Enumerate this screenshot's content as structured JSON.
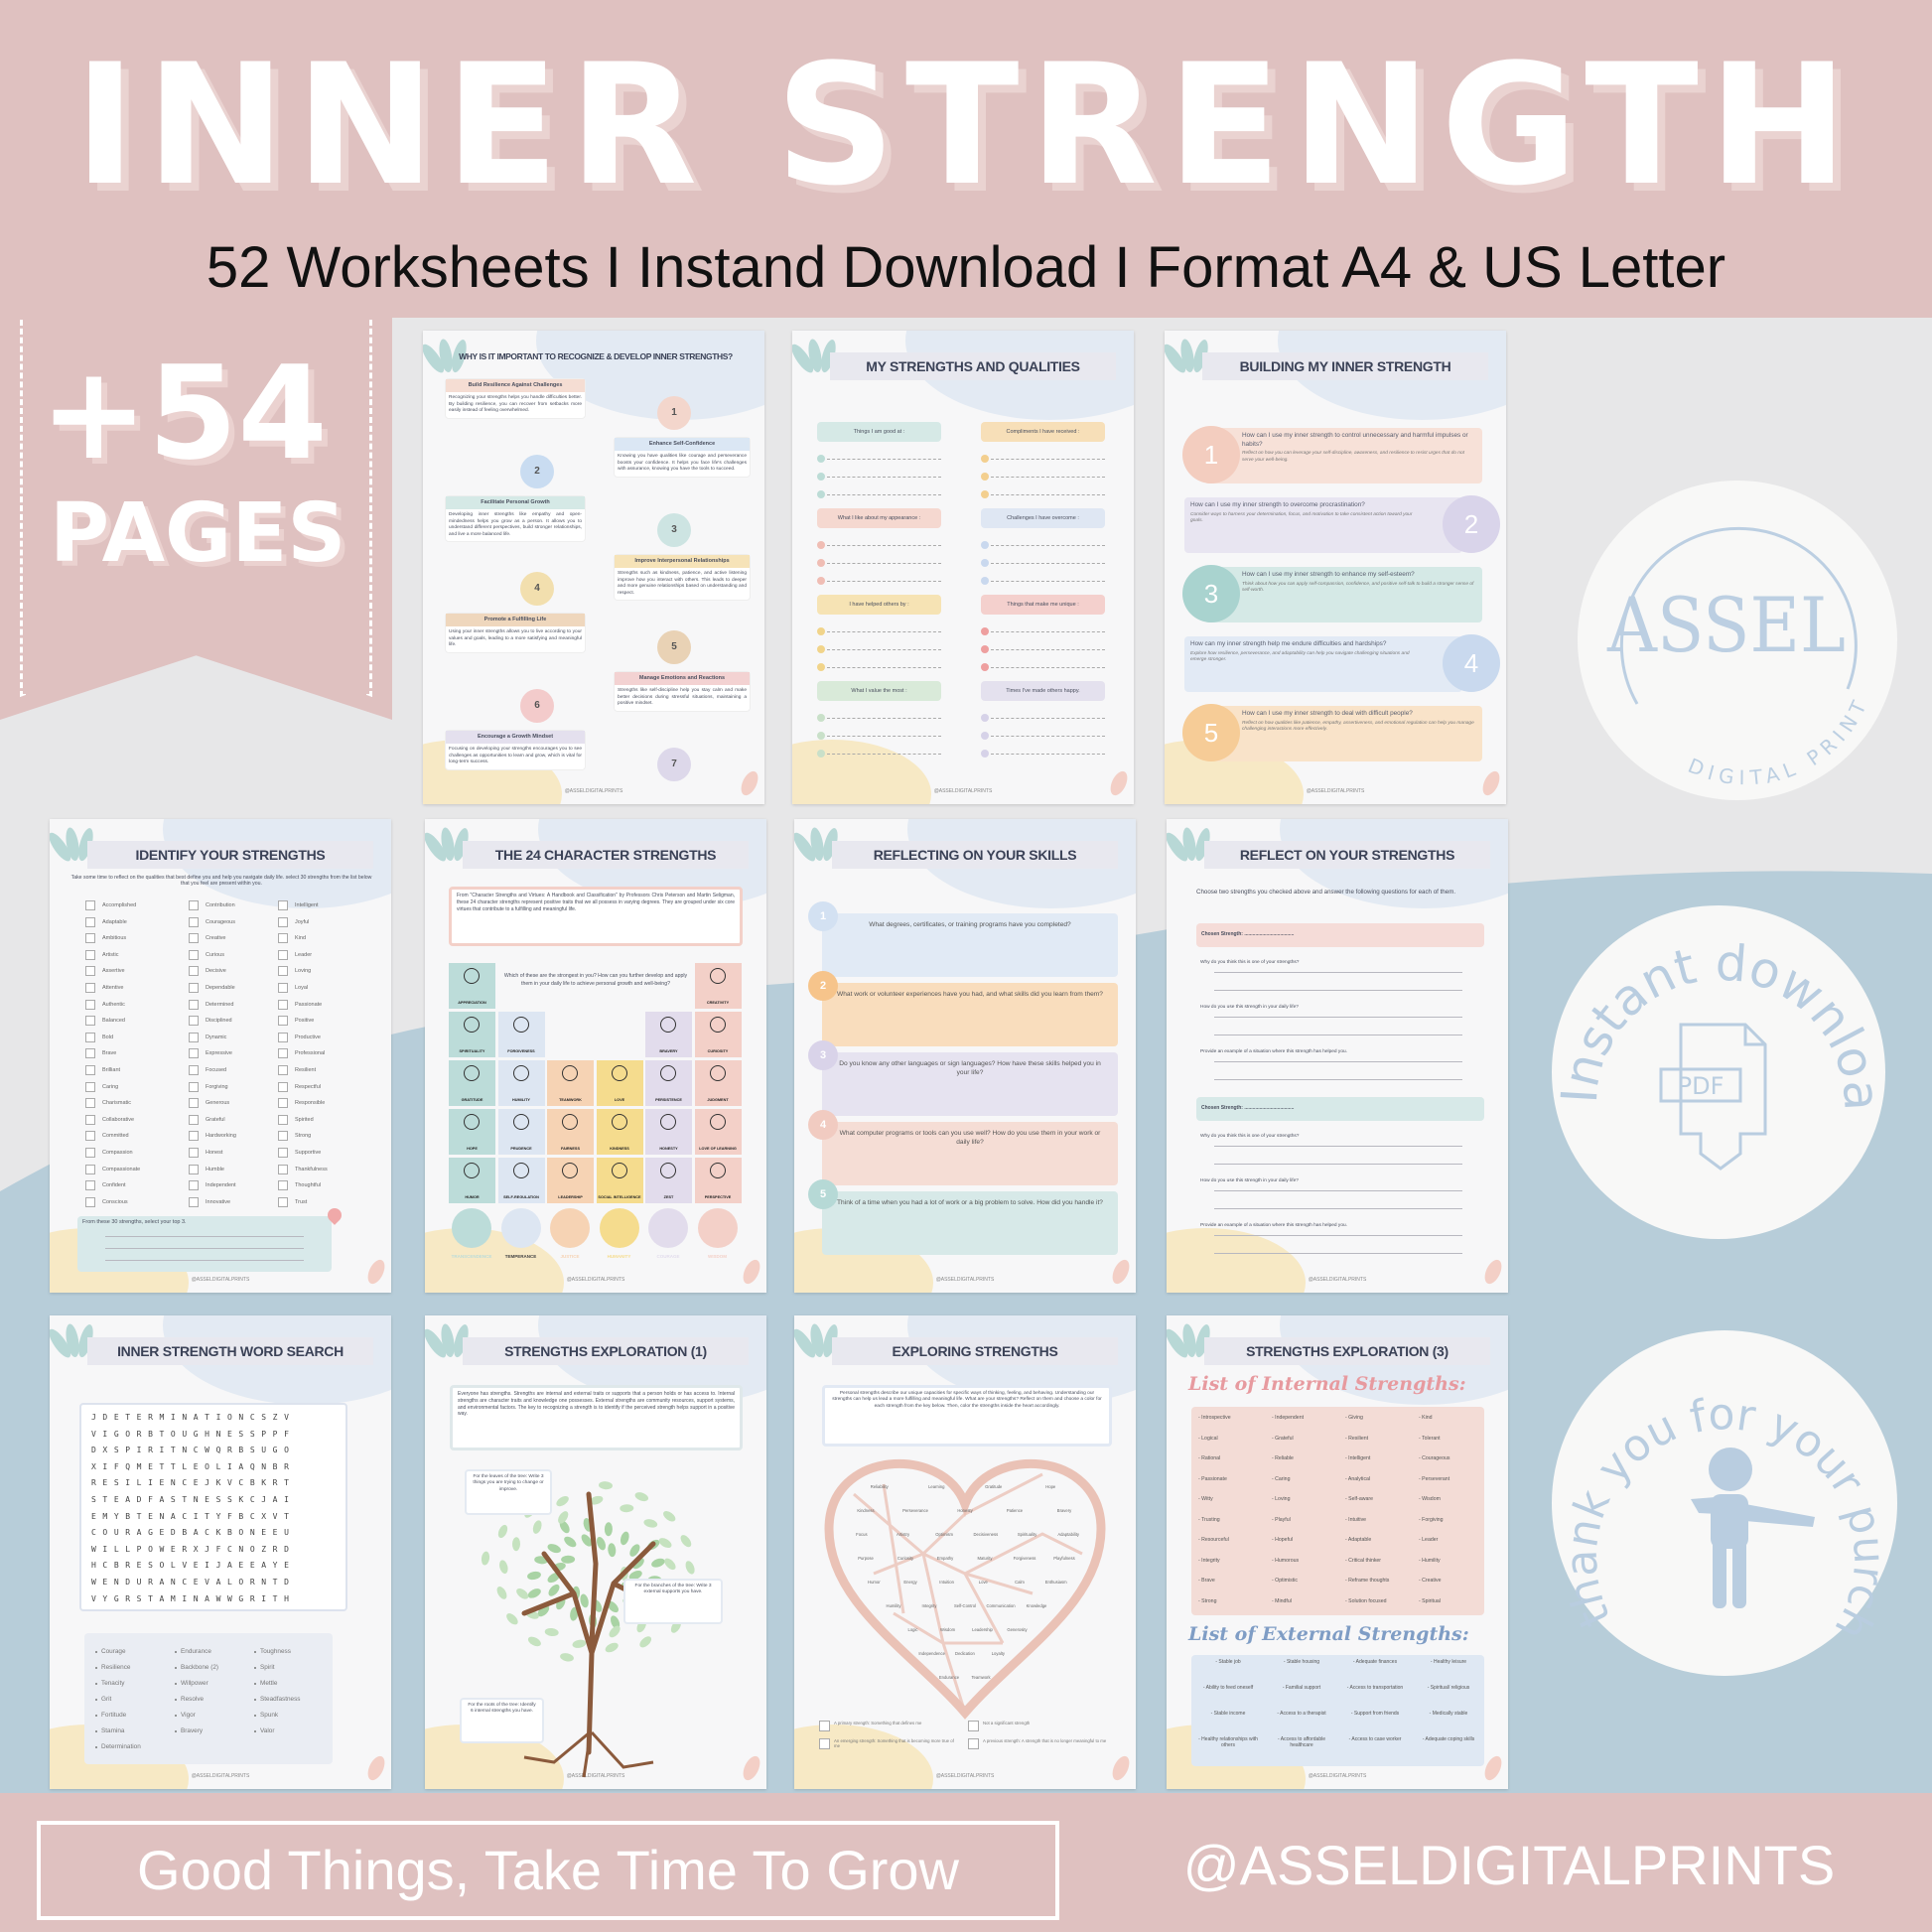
{
  "header": {
    "title": "INNER STRENGTH",
    "subtitle": "52 Worksheets I Instand Download I Format A4 & US Letter"
  },
  "ribbon": {
    "count": "+54",
    "label": "PAGES"
  },
  "footer": {
    "slogan": "Good Things, Take Time To Grow",
    "handle": "@ASSELDIGITALPRINTS"
  },
  "colors": {
    "pink_band": "#dfc1c0",
    "background": "#e7e7e8",
    "blue_wave": "#b7cdd9",
    "badge_blue": "#b9cde0"
  },
  "badges": {
    "logo": {
      "name": "ASSEL",
      "tagline": "DIGITAL PRINT"
    },
    "download": {
      "text": "Instant download",
      "icon": "pdf-download-icon",
      "icon_label": "PDF"
    },
    "thanks": {
      "text": "thank you for your purchase",
      "icon": "person-bowing-icon"
    }
  },
  "page_footer": "@ASSELDIGITALPRINTS",
  "pages": {
    "why": {
      "title": "WHY IS IT IMPORTANT TO RECOGNIZE & DEVELOP INNER STRENGTHS?",
      "items": [
        {
          "n": "1",
          "title": "Build Resilience Against Challenges",
          "text": "Recognizing your strengths helps you handle difficulties better. By building resilience, you can recover from setbacks more easily instead of feeling overwhelmed."
        },
        {
          "n": "2",
          "title": "Enhance Self-Confidence",
          "text": "Knowing you have qualities like courage and perseverance boosts your confidence. It helps you face life's challenges with assurance, knowing you have the tools to succeed."
        },
        {
          "n": "3",
          "title": "Facilitate Personal Growth",
          "text": "Developing inner strengths like empathy and open-mindedness helps you grow as a person. It allows you to understand different perspectives, build stronger relationships, and live a more balanced life."
        },
        {
          "n": "4",
          "title": "Improve Interpersonal Relationships",
          "text": "Strengths such as kindness, patience, and active listening improve how you interact with others. This leads to deeper and more genuine relationships based on understanding and respect."
        },
        {
          "n": "5",
          "title": "Promote a Fulfilling Life",
          "text": "Using your inner strengths allows you to live according to your values and goals, leading to a more satisfying and meaningful life."
        },
        {
          "n": "6",
          "title": "Manage Emotions and Reactions",
          "text": "Strengths like self-discipline help you stay calm and make better decisions during stressful situations, maintaining a positive mindset."
        },
        {
          "n": "7",
          "title": "Encourage a Growth Mindset",
          "text": "Focusing on developing your strengths encourages you to see challenges as opportunities to learn and grow, which is vital for long-term success."
        }
      ]
    },
    "qualities": {
      "title": "MY STRENGTHS AND QUALITIES",
      "sections": [
        "Things I am good at :",
        "Compliments I have received :",
        "What I like about my appearance :",
        "Challenges I have overcome :",
        "I have helped others by :",
        "Things that make me unique :",
        "What I value the most :",
        "Times I've made others happy."
      ]
    },
    "building": {
      "title": "BUILDING MY INNER STRENGTH",
      "items": [
        {
          "n": "1",
          "q": "How can I use my inner strength to control unnecessary and harmful impulses or habits?",
          "hint": "Reflect on how you can leverage your self-discipline, awareness, and resilience to resist urges that do not serve your well-being."
        },
        {
          "n": "2",
          "q": "How can I use my inner strength to overcome procrastination?",
          "hint": "Consider ways to harness your determination, focus, and motivation to take consistent action toward your goals."
        },
        {
          "n": "3",
          "q": "How can I use my inner strength to enhance my self-esteem?",
          "hint": "Think about how you can apply self-compassion, confidence, and positive self-talk to build a stronger sense of self-worth."
        },
        {
          "n": "4",
          "q": "How can my inner strength help me endure difficulties and hardships?",
          "hint": "Explore how resilience, perseverance, and adaptability can help you navigate challenging situations and emerge stronger."
        },
        {
          "n": "5",
          "q": "How can I use my inner strength to deal with difficult people?",
          "hint": "Reflect on how qualities like patience, empathy, assertiveness, and emotional regulation can help you manage challenging interactions more effectively."
        }
      ]
    },
    "identify": {
      "title": "IDENTIFY YOUR STRENGTHS",
      "intro": "Take some time to reflect on the qualities that best define you and help you navigate daily life. select 30 strengths from the list below that you feel are present within you.",
      "columns": [
        [
          "Accomplished",
          "Adaptable",
          "Ambitious",
          "Artistic",
          "Assertive",
          "Attentive",
          "Authentic",
          "Balanced",
          "Bold",
          "Brave",
          "Brilliant",
          "Caring",
          "Charismatic",
          "Collaborative",
          "Committed",
          "Compassion",
          "Compassionate",
          "Confident",
          "Conscious"
        ],
        [
          "Contribution",
          "Courageous",
          "Creative",
          "Curious",
          "Decisive",
          "Dependable",
          "Determined",
          "Disciplined",
          "Dynamic",
          "Expressive",
          "Focused",
          "Forgiving",
          "Generous",
          "Grateful",
          "Hardworking",
          "Honest",
          "Humble",
          "Independent",
          "Innovative"
        ],
        [
          "Intelligent",
          "Joyful",
          "Kind",
          "Leader",
          "Loving",
          "Loyal",
          "Passionate",
          "Positive",
          "Productive",
          "Professional",
          "Resilient",
          "Respectful",
          "Responsible",
          "Spirited",
          "Strong",
          "Supportive",
          "Thankfulness",
          "Thoughtful",
          "Trust"
        ]
      ],
      "prompt": "From these 30 strengths, select your top 3."
    },
    "character": {
      "title": "THE 24 CHARACTER STRENGTHS",
      "intro": "From \"Character Strengths and Virtues: A Handbook and Classification\" by Professors Chris Peterson and Martin Seligman, these 24 character strengths represent positive traits that we all possess in varying degrees. They are grouped under six core virtues that contribute to a fulfilling and meaningful life.",
      "question": "Which of these are the strongest in you? How can you further develop and apply them in your daily life to achieve personal growth and well-being?",
      "grid": [
        [
          "APPRECIATION",
          "",
          "",
          "",
          "",
          "CREATIVITY"
        ],
        [
          "SPIRITUALITY",
          "FORGIVENESS",
          "",
          "",
          "BRAVERY",
          "CURIOSITY"
        ],
        [
          "GRATITUDE",
          "HUMILITY",
          "TEAMWORK",
          "LOVE",
          "PERSISTENCE",
          "JUDGMENT"
        ],
        [
          "HOPE",
          "PRUDENCE",
          "FAIRNESS",
          "KINDNESS",
          "HONESTY",
          "LOVE OF LEARNING"
        ],
        [
          "HUMOR",
          "SELF-REGULATION",
          "LEADERSHIP",
          "SOCIAL INTELLIGENCE",
          "ZEST",
          "PERSPECTIVE"
        ]
      ],
      "virtues": [
        "TRANSCENDENCE",
        "TEMPERANCE",
        "JUSTICE",
        "HUMANITY",
        "COURAGE",
        "WISDOM"
      ],
      "virtue_colors": [
        "#bcdcd9",
        "#dde6f2",
        "#f6d3b4",
        "#f5dc8e",
        "#e2dcec",
        "#f3d0c8"
      ]
    },
    "skills": {
      "title": "REFLECTING ON YOUR SKILLS",
      "items": [
        {
          "n": "1",
          "q": "What degrees, certificates, or training programs have you completed?"
        },
        {
          "n": "2",
          "q": "What work or volunteer experiences have you had, and what skills did you learn from them?"
        },
        {
          "n": "3",
          "q": "Do you know any other languages or sign languages? How have these skills helped you in your life?"
        },
        {
          "n": "4",
          "q": "What computer programs or tools can you use well? How do you use them in your work or daily life?"
        },
        {
          "n": "5",
          "q": "Think of a time when you had a lot of work or a big problem to solve. How did you handle it?"
        }
      ]
    },
    "reflect": {
      "title": "REFLECT ON YOUR STRENGTHS",
      "intro": "Choose two strengths you checked above and answer the following questions for each of them.",
      "chosen": "Chosen Strength: ....................................",
      "questions": [
        "Why do you think this is one of your strengths?",
        "How do you use this strength in your daily life?",
        "Provide an example of a situation where this strength has helped you."
      ]
    },
    "wordsearch": {
      "title": "INNER STRENGTH WORD SEARCH",
      "grid": [
        "JDETERMINATIONCSZV",
        "VIGORBTOUGHNESSPPF",
        "DXSPIRITNCWQRBSUGO",
        "XIFQMETTLEOLIAQNBR",
        "RESILIENCEJKVCBKRT",
        "STEADFASTNESSKCJAI",
        "EMYBTENACITYFBCXVT",
        "COURAGEDBACKBONEEU",
        "WILLPOWERXJFCNOZRD",
        "HCBRESOLVEIJAEEAYE",
        "WENDURANCEVALORNTD",
        "VYGRSTAMINAWWGRITH"
      ],
      "words": [
        [
          "Courage",
          "Resilience",
          "Tenacity",
          "Grit",
          "Fortitude",
          "Stamina",
          "Determination"
        ],
        [
          "Endurance",
          "Backbone (2)",
          "Willpower",
          "Resolve",
          "Vigor",
          "Bravery"
        ],
        [
          "Toughness",
          "Spirit",
          "Mettle",
          "Steadfastness",
          "Spunk",
          "Valor"
        ]
      ]
    },
    "tree": {
      "title": "STRENGTHS EXPLORATION (1)",
      "intro": "Everyone has strengths. Strengths are internal and external traits or supports that a person holds or has access to. Internal strengths are character traits and knowledge one possesses. External strengths are community resources, support systems, and environmental factors. The key to recognizing a strength is to identify if the perceived strength helps support in a positive way.",
      "leaves": "For the leaves of the tree: Write 3 things you are trying to change or improve.",
      "branches": "For the branches of the tree: Write 3 external supports you have.",
      "roots": "For the roots of the tree: Identify 6 internal strengths you have."
    },
    "heart": {
      "title": "EXPLORING STRENGTHS",
      "intro": "Personal strengths describe our unique capacities for specific ways of thinking, feeling, and behaving. Understanding our strengths can help us lead a more fulfilling and meaningful life. What are your strengths? Reflect on them and choose a color for each strength from the key below. Then, color the strengths inside the heart accordingly.",
      "words": [
        "Reliability",
        "Learning",
        "Gratitude",
        "Hope",
        "Kindness",
        "Perseverance",
        "Honesty",
        "Patience",
        "Bravery",
        "Focus",
        "Artistry",
        "Optimism",
        "Decisiveness",
        "Spirituality",
        "Adaptability",
        "Purpose",
        "Curiosity",
        "Empathy",
        "Maturity",
        "Forgiveness",
        "Playfulness",
        "Humor",
        "Energy",
        "Intuition",
        "Love",
        "Calm",
        "Enthusiasm",
        "Humility",
        "Integrity",
        "Self-Control",
        "Communication",
        "Knowledge",
        "Logic",
        "Wisdom",
        "Leadership",
        "Generosity",
        "Independence",
        "Dedication",
        "Loyalty",
        "Endurance",
        "Teamwork"
      ],
      "key": [
        "A primary strength: Something that defines me",
        "Not a significant strength",
        "An emerging strength: Something that is becoming more true of me",
        "A previous strength: A strength that is no longer meaningful to me"
      ]
    },
    "lists": {
      "title": "STRENGTHS EXPLORATION (3)",
      "internal_heading": "List of Internal Strengths:",
      "external_heading": "List of External Strengths:",
      "internal": [
        "- Introspective",
        "- Independent",
        "- Giving",
        "- Kind",
        "- Logical",
        "- Grateful",
        "- Resilient",
        "- Tolerant",
        "- Rational",
        "- Reliable",
        "- Intelligent",
        "- Courageous",
        "- Passionate",
        "- Caring",
        "- Analytical",
        "- Perseverant",
        "- Witty",
        "- Loving",
        "- Self-aware",
        "- Wisdom",
        "- Trusting",
        "- Playful",
        "- Intuitive",
        "- Forgiving",
        "- Resourceful",
        "- Hopeful",
        "- Adaptable",
        "- Leader",
        "- Integrity",
        "- Humorous",
        "- Critical thinker",
        "- Humility",
        "- Brave",
        "- Optimistic",
        "- Reframe thoughts",
        "- Creative",
        "- Strong",
        "- Mindful",
        "- Solution focused",
        "- Spiritual"
      ],
      "external": [
        "- Stable job",
        "- Stable housing",
        "- Adequate finances",
        "- Healthy leisure",
        "- Ability to feed oneself",
        "- Familial support",
        "- Access to transportation",
        "- Spiritual/ religious",
        "- Stable income",
        "- Access to a therapist",
        "- Support from friends",
        "- Medically stable",
        "- Healthy relationships with others",
        "- Access to affordable healthcare",
        "- Access to case worker",
        "- Adequate coping skills"
      ]
    }
  }
}
